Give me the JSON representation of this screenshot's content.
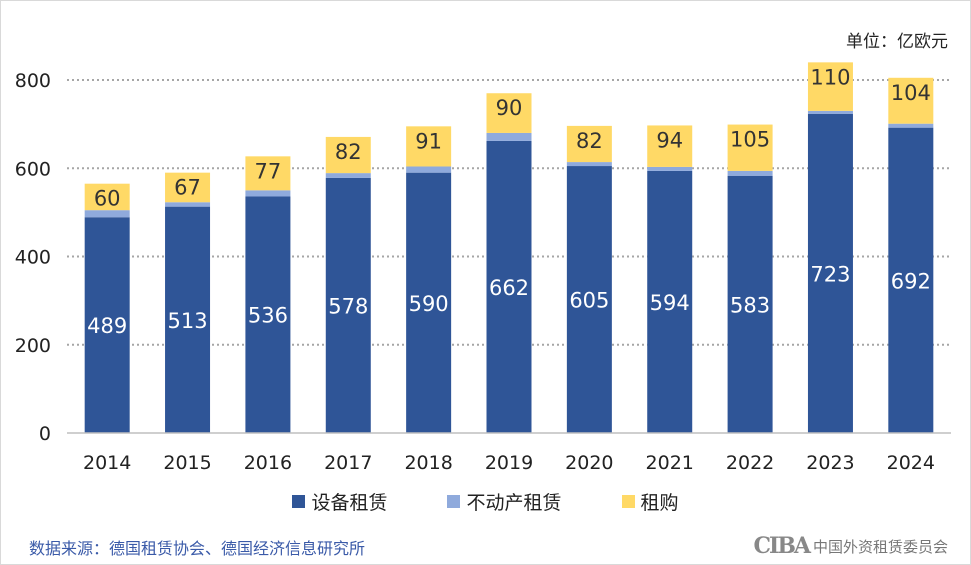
{
  "chart_data": {
    "type": "bar",
    "stacked": true,
    "unit_label": "单位：亿欧元",
    "categories": [
      "2014",
      "2015",
      "2016",
      "2017",
      "2018",
      "2019",
      "2020",
      "2021",
      "2022",
      "2023",
      "2024"
    ],
    "series": [
      {
        "name": "设备租赁",
        "color": "#2f5597",
        "values": [
          489,
          513,
          536,
          578,
          590,
          662,
          605,
          594,
          583,
          723,
          692
        ],
        "labels": true
      },
      {
        "name": "不动产租赁",
        "color": "#8faadc",
        "values": [
          16,
          10,
          14,
          11,
          14,
          18,
          9,
          9,
          11,
          7,
          9
        ],
        "labels": false
      },
      {
        "name": "租购",
        "color": "#ffd966",
        "values": [
          60,
          67,
          77,
          82,
          91,
          90,
          82,
          94,
          105,
          110,
          104
        ],
        "labels": true
      }
    ],
    "ylim": [
      0,
      800
    ],
    "yticks": [
      0,
      200,
      400,
      600,
      800
    ],
    "grid": true,
    "legend": "bottom"
  },
  "footer": {
    "source": "数据来源：德国租赁协会、德国经济信息研究所",
    "logo_mark": "CIBA",
    "logo_org": "中国外资租赁委员会"
  }
}
